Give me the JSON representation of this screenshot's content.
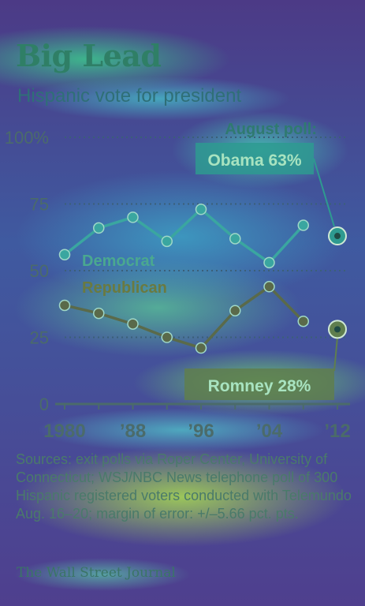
{
  "header": {
    "title": "Big Lead",
    "subtitle": "Hispanic vote for president"
  },
  "chart_data": {
    "type": "line",
    "x": [
      1980,
      1984,
      1988,
      1992,
      1996,
      2000,
      2004,
      2008
    ],
    "series": [
      {
        "name": "Democrat",
        "color": "#3aa6a0",
        "values": [
          56,
          66,
          70,
          61,
          73,
          62,
          53,
          67
        ]
      },
      {
        "name": "Republican",
        "color": "#5a6a4a",
        "values": [
          37,
          34,
          30,
          25,
          21,
          35,
          44,
          31
        ]
      }
    ],
    "poll": {
      "x": 2012,
      "heading": "August poll:",
      "democrat": {
        "value": 63,
        "label": "Obama 63%"
      },
      "republican": {
        "value": 28,
        "label": "Romney 28%"
      }
    },
    "xlim": [
      1980,
      2012
    ],
    "ylim": [
      0,
      100
    ],
    "yticks": [
      0,
      25,
      50,
      75,
      100
    ],
    "ytick_labels": [
      "0",
      "25",
      "50",
      "75",
      "100%"
    ],
    "xticks": [
      1980,
      1988,
      1996,
      2004,
      2012
    ],
    "xtick_labels": [
      "1980",
      "’88",
      "’96",
      "’04",
      "’12"
    ],
    "grid": true,
    "colors": {
      "axis": "#4b6b6a",
      "grid": "#3b5f78",
      "callout_obama": "#2e9a90",
      "callout_romney": "#5f7e4e",
      "callout_text": "#a8e3c0"
    }
  },
  "footer": {
    "sources": "Sources: exit polls via Roper Center, University of Connecticut; WSJ/NBC News telephone poll of 300 Hispanic registered voters conducted with Telemundo Aug. 16–20; margin of error: +/–5.66 pct. pts.",
    "credit": "The Wall Street Journal"
  }
}
